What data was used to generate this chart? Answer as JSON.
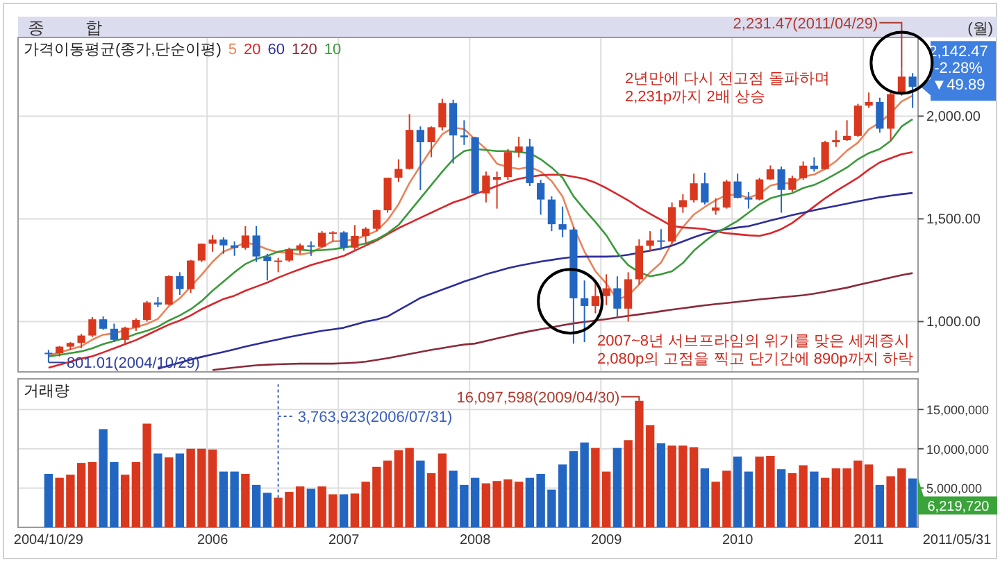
{
  "chart_data": [
    {
      "type": "candlestick",
      "title": "종 합",
      "legend_title": "가격이동평균(종가,단순이평)",
      "legend": "top left",
      "grid": true,
      "tick_labels": "y",
      "categories": [
        "2004/10/29",
        null,
        null,
        null,
        null,
        null,
        null,
        null,
        null,
        null,
        null,
        null,
        null,
        null,
        null,
        "2006",
        null,
        null,
        null,
        null,
        null,
        null,
        null,
        null,
        null,
        null,
        null,
        "2007",
        null,
        null,
        null,
        null,
        null,
        null,
        null,
        null,
        null,
        null,
        null,
        "2008",
        null,
        null,
        null,
        null,
        null,
        null,
        null,
        null,
        null,
        null,
        null,
        "2009",
        null,
        null,
        null,
        null,
        null,
        null,
        null,
        null,
        null,
        null,
        null,
        "2010",
        null,
        null,
        null,
        null,
        null,
        null,
        null,
        null,
        null,
        null,
        null,
        "2011",
        null,
        null,
        null,
        null
      ],
      "ohlc": [
        [
          848,
          862,
          801.01,
          845
        ],
        [
          845,
          880,
          830,
          878
        ],
        [
          878,
          900,
          862,
          896
        ],
        [
          896,
          940,
          870,
          932
        ],
        [
          932,
          1022,
          925,
          1011
        ],
        [
          1011,
          1025,
          960,
          965
        ],
        [
          965,
          990,
          900,
          911
        ],
        [
          911,
          975,
          890,
          970
        ],
        [
          970,
          1015,
          955,
          1008
        ],
        [
          1008,
          1100,
          1000,
          1093
        ],
        [
          1093,
          1120,
          1070,
          1083
        ],
        [
          1083,
          1225,
          1080,
          1221
        ],
        [
          1221,
          1240,
          1130,
          1158
        ],
        [
          1158,
          1300,
          1140,
          1297
        ],
        [
          1297,
          1380,
          1290,
          1379
        ],
        [
          1379,
          1421,
          1340,
          1399
        ],
        [
          1399,
          1410,
          1330,
          1371
        ],
        [
          1371,
          1390,
          1320,
          1359
        ],
        [
          1359,
          1465,
          1350,
          1419
        ],
        [
          1419,
          1465,
          1290,
          1317
        ],
        [
          1317,
          1330,
          1200,
          1295
        ],
        [
          1295,
          1310,
          1240,
          1297
        ],
        [
          1297,
          1360,
          1290,
          1352
        ],
        [
          1352,
          1380,
          1330,
          1371
        ],
        [
          1371,
          1390,
          1320,
          1364
        ],
        [
          1364,
          1440,
          1360,
          1432
        ],
        [
          1432,
          1440,
          1390,
          1434
        ],
        [
          1434,
          1440,
          1345,
          1360
        ],
        [
          1360,
          1470,
          1350,
          1417
        ],
        [
          1417,
          1460,
          1380,
          1452
        ],
        [
          1452,
          1545,
          1440,
          1542
        ],
        [
          1542,
          1700,
          1530,
          1700
        ],
        [
          1700,
          1790,
          1680,
          1743
        ],
        [
          1743,
          2010,
          1740,
          1933
        ],
        [
          1933,
          1950,
          1640,
          1873
        ],
        [
          1873,
          1950,
          1800,
          1946
        ],
        [
          1946,
          2085,
          1930,
          2064
        ],
        [
          2064,
          2080,
          1770,
          1906
        ],
        [
          1906,
          1980,
          1860,
          1897
        ],
        [
          1897,
          1900,
          1620,
          1624
        ],
        [
          1624,
          1730,
          1580,
          1711
        ],
        [
          1690,
          1730,
          1550,
          1704
        ],
        [
          1704,
          1840,
          1690,
          1825
        ],
        [
          1825,
          1900,
          1800,
          1852
        ],
        [
          1852,
          1890,
          1660,
          1674
        ],
        [
          1674,
          1690,
          1520,
          1594
        ],
        [
          1594,
          1610,
          1440,
          1474
        ],
        [
          1474,
          1560,
          1410,
          1448
        ],
        [
          1448,
          1460,
          892,
          1113
        ],
        [
          1113,
          1200,
          900,
          1076
        ],
        [
          1076,
          1200,
          1040,
          1124
        ],
        [
          1124,
          1230,
          1080,
          1162
        ],
        [
          1162,
          1220,
          1020,
          1063
        ],
        [
          1063,
          1240,
          1000,
          1206
        ],
        [
          1206,
          1400,
          1180,
          1369
        ],
        [
          1369,
          1440,
          1340,
          1395
        ],
        [
          1395,
          1450,
          1350,
          1390
        ],
        [
          1390,
          1580,
          1380,
          1557
        ],
        [
          1557,
          1620,
          1530,
          1591
        ],
        [
          1591,
          1720,
          1580,
          1673
        ],
        [
          1673,
          1725,
          1570,
          1580
        ],
        [
          1540,
          1600,
          1520,
          1555
        ],
        [
          1555,
          1690,
          1550,
          1682
        ],
        [
          1682,
          1720,
          1600,
          1602
        ],
        [
          1602,
          1630,
          1550,
          1594
        ],
        [
          1594,
          1700,
          1590,
          1692
        ],
        [
          1692,
          1760,
          1690,
          1741
        ],
        [
          1741,
          1755,
          1530,
          1641
        ],
        [
          1641,
          1710,
          1630,
          1698
        ],
        [
          1698,
          1780,
          1690,
          1759
        ],
        [
          1759,
          1800,
          1730,
          1742
        ],
        [
          1742,
          1880,
          1740,
          1873
        ],
        [
          1873,
          1930,
          1850,
          1883
        ],
        [
          1883,
          1980,
          1880,
          1904
        ],
        [
          1904,
          2060,
          1900,
          2051
        ],
        [
          2051,
          2115,
          2040,
          2069
        ],
        [
          2069,
          2090,
          1920,
          1939
        ],
        [
          1939,
          2120,
          1882,
          2107
        ],
        [
          2107,
          2231.47,
          2100,
          2192.36
        ],
        [
          2192.36,
          2210,
          2040,
          2142.47
        ]
      ],
      "series": [
        {
          "name": "5",
          "type": "line",
          "color": "#e8845a",
          "values": [
            835,
            850,
            865,
            880,
            912,
            936,
            943,
            958,
            973,
            989,
            1013,
            1075,
            1113,
            1170,
            1228,
            1291,
            1341,
            1361,
            1385,
            1373,
            1352,
            1337,
            1336,
            1326,
            1336,
            1363,
            1391,
            1392,
            1401,
            1419,
            1441,
            1494,
            1571,
            1674,
            1758,
            1839,
            1912,
            1944,
            1937,
            1887,
            1840,
            1768,
            1752,
            1743,
            1753,
            1730,
            1684,
            1609,
            1461,
            1341,
            1245,
            1185,
            1108,
            1126,
            1181,
            1239,
            1287,
            1383,
            1460,
            1521,
            1558,
            1591,
            1616,
            1618,
            1603,
            1621,
            1662,
            1674,
            1673,
            1706,
            1716,
            1743,
            1781,
            1832,
            1871,
            1936,
            1969,
            2014,
            2072,
            2100
          ]
        },
        {
          "name": "20",
          "type": "line",
          "color": "#d8262a",
          "values": [
            775,
            790,
            805,
            820,
            831,
            850,
            870,
            890,
            910,
            935,
            960,
            985,
            1005,
            1030,
            1060,
            1085,
            1110,
            1126,
            1150,
            1170,
            1190,
            1214,
            1235,
            1255,
            1275,
            1290,
            1305,
            1320,
            1345,
            1370,
            1395,
            1425,
            1455,
            1480,
            1505,
            1530,
            1555,
            1580,
            1597,
            1620,
            1640,
            1660,
            1680,
            1695,
            1705,
            1712,
            1715,
            1714,
            1705,
            1695,
            1676,
            1650,
            1620,
            1590,
            1555,
            1525,
            1495,
            1465,
            1458,
            1455,
            1450,
            1440,
            1430,
            1425,
            1420,
            1417,
            1430,
            1450,
            1480,
            1520,
            1560,
            1600,
            1635,
            1667,
            1700,
            1740,
            1775,
            1795,
            1815,
            1825
          ]
        },
        {
          "name": "60",
          "type": "line",
          "color": "#2d2d9a",
          "values": [
            null,
            null,
            null,
            null,
            null,
            null,
            null,
            null,
            null,
            null,
            770,
            785,
            800,
            815,
            828,
            840,
            852,
            865,
            878,
            890,
            902,
            913,
            925,
            935,
            945,
            955,
            962,
            970,
            985,
            1000,
            1010,
            1025,
            1055,
            1085,
            1115,
            1135,
            1155,
            1175,
            1195,
            1212,
            1230,
            1245,
            1260,
            1272,
            1282,
            1292,
            1300,
            1308,
            1315,
            1316,
            1316,
            1316,
            1318,
            1325,
            1335,
            1345,
            1355,
            1370,
            1390,
            1410,
            1428,
            1440,
            1450,
            1458,
            1464,
            1478,
            1492,
            1505,
            1518,
            1530,
            1542,
            1553,
            1563,
            1574,
            1585,
            1595,
            1605,
            1613,
            1620,
            1626
          ]
        },
        {
          "name": "120",
          "type": "line",
          "color": "#8a2a3a",
          "values": [
            null,
            null,
            null,
            null,
            null,
            null,
            null,
            null,
            null,
            null,
            null,
            null,
            null,
            null,
            null,
            764,
            770,
            776,
            782,
            787,
            790,
            792,
            794,
            795,
            795,
            795,
            795,
            797,
            800,
            805,
            813,
            822,
            832,
            842,
            852,
            862,
            871,
            880,
            888,
            893,
            905,
            918,
            930,
            942,
            953,
            963,
            972,
            982,
            991,
            998,
            1005,
            1012,
            1020,
            1028,
            1035,
            1042,
            1050,
            1058,
            1065,
            1072,
            1079,
            1085,
            1090,
            1096,
            1102,
            1108,
            1113,
            1118,
            1123,
            1128,
            1136,
            1145,
            1155,
            1165,
            1178,
            1190,
            1202,
            1214,
            1226,
            1236
          ]
        },
        {
          "name": "10",
          "type": "line",
          "color": "#3a9a3a",
          "values": [
            830,
            838,
            846,
            855,
            870,
            890,
            905,
            920,
            940,
            955,
            975,
            1005,
            1030,
            1060,
            1100,
            1150,
            1195,
            1240,
            1280,
            1305,
            1320,
            1340,
            1350,
            1350,
            1345,
            1348,
            1352,
            1360,
            1370,
            1380,
            1400,
            1430,
            1470,
            1535,
            1600,
            1665,
            1730,
            1790,
            1830,
            1840,
            1835,
            1830,
            1830,
            1825,
            1820,
            1790,
            1750,
            1700,
            1610,
            1545,
            1485,
            1420,
            1335,
            1275,
            1240,
            1220,
            1230,
            1245,
            1285,
            1345,
            1390,
            1430,
            1460,
            1490,
            1530,
            1570,
            1600,
            1615,
            1625,
            1650,
            1665,
            1690,
            1720,
            1750,
            1790,
            1820,
            1840,
            1880,
            1950,
            1985
          ]
        }
      ],
      "ylim": [
        755,
        2383
      ],
      "yticks": [
        {
          "value": 1000,
          "label": "1,000.00"
        },
        {
          "value": 1500,
          "label": "1,500.00"
        },
        {
          "value": 2000,
          "label": "2,000.00"
        }
      ],
      "annotations": [
        "2,231.47(2011/04/29)",
        "2년만에 다시 전고점 돌파하며",
        "2,231p까지 2배 상승",
        {
          "text": "801.01(2004/10/29)",
          "x": "2004/10/29",
          "y": 801.01
        },
        "2007~8년 서브프라임의 위기를 맞은 세계증시",
        "2,080p의 고점을 찍고 단기간에 890p까지 하락",
        "2,142.47",
        "-2.28%",
        "▼49.89",
        "(월)"
      ]
    },
    {
      "type": "bar",
      "title": "거래량",
      "grid": true,
      "categories": [
        "2004/10/29",
        null,
        null,
        null,
        null,
        null,
        null,
        null,
        null,
        null,
        null,
        null,
        null,
        null,
        null,
        "2006",
        null,
        null,
        null,
        null,
        null,
        null,
        null,
        null,
        null,
        null,
        null,
        "2007",
        null,
        null,
        null,
        null,
        null,
        null,
        null,
        null,
        null,
        null,
        null,
        "2008",
        null,
        null,
        null,
        null,
        null,
        null,
        null,
        null,
        null,
        null,
        null,
        "2009",
        null,
        null,
        null,
        null,
        null,
        null,
        null,
        null,
        null,
        null,
        null,
        "2010",
        null,
        null,
        null,
        null,
        null,
        null,
        null,
        null,
        null,
        null,
        null,
        "2011",
        null,
        null,
        null,
        null
      ],
      "values": [
        6800000,
        6300000,
        6700000,
        8200000,
        8300000,
        12500000,
        8300000,
        6700000,
        8300000,
        13200000,
        9400000,
        8900000,
        9400000,
        10000000,
        10000000,
        9900000,
        7100000,
        7100000,
        6800000,
        5400000,
        4400000,
        3763923,
        4500000,
        5200000,
        4900000,
        5200000,
        4200000,
        4200000,
        4300000,
        5800000,
        7700000,
        8500000,
        9800000,
        10100000,
        8500000,
        6900000,
        9400000,
        7200000,
        5400000,
        6300000,
        5600000,
        5900000,
        6100000,
        5800000,
        6300000,
        6800000,
        4800000,
        8000000,
        9700000,
        10800000,
        10100000,
        7100000,
        10100000,
        11100000,
        16097598,
        13000000,
        10700000,
        10400000,
        10400000,
        10200000,
        7500000,
        5800000,
        7200000,
        9000000,
        7100000,
        9000000,
        9100000,
        7400000,
        6900000,
        7900000,
        7100000,
        6300000,
        7500000,
        7500000,
        8500000,
        8000000,
        5400000,
        6500000,
        7500000,
        6219720
      ],
      "colors": [
        "#2366c2",
        "#d9381e",
        "#d9381e",
        "#d9381e",
        "#d9381e",
        "#2366c2",
        "#2366c2",
        "#d9381e",
        "#d9381e",
        "#d9381e",
        "#2366c2",
        "#d9381e",
        "#2366c2",
        "#d9381e",
        "#d9381e",
        "#d9381e",
        "#2366c2",
        "#2366c2",
        "#d9381e",
        "#2366c2",
        "#2366c2",
        "#d9381e",
        "#d9381e",
        "#d9381e",
        "#2366c2",
        "#d9381e",
        "#d9381e",
        "#2366c2",
        "#d9381e",
        "#d9381e",
        "#d9381e",
        "#d9381e",
        "#d9381e",
        "#d9381e",
        "#2366c2",
        "#d9381e",
        "#d9381e",
        "#2366c2",
        "#2366c2",
        "#2366c2",
        "#d9381e",
        "#d9381e",
        "#d9381e",
        "#d9381e",
        "#2366c2",
        "#2366c2",
        "#2366c2",
        "#2366c2",
        "#2366c2",
        "#2366c2",
        "#d9381e",
        "#d9381e",
        "#2366c2",
        "#d9381e",
        "#d9381e",
        "#d9381e",
        "#2366c2",
        "#d9381e",
        "#d9381e",
        "#d9381e",
        "#2366c2",
        "#d9381e",
        "#d9381e",
        "#2366c2",
        "#2366c2",
        "#d9381e",
        "#d9381e",
        "#2366c2",
        "#d9381e",
        "#d9381e",
        "#2366c2",
        "#d9381e",
        "#d9381e",
        "#d9381e",
        "#d9381e",
        "#d9381e",
        "#2366c2",
        "#d9381e",
        "#d9381e",
        "#2366c2"
      ],
      "ylim": [
        0,
        18900000
      ],
      "yticks": [
        {
          "value": 5000000,
          "label": "5,000,000"
        },
        {
          "value": 10000000,
          "label": "10,000,000"
        },
        {
          "value": 15000000,
          "label": "15,000,000"
        }
      ],
      "annotations": [
        "16,097,598(2009/04/30)",
        "3,763,923(2006/07/31)",
        "6,219,720",
        "2011/05/31"
      ]
    }
  ]
}
